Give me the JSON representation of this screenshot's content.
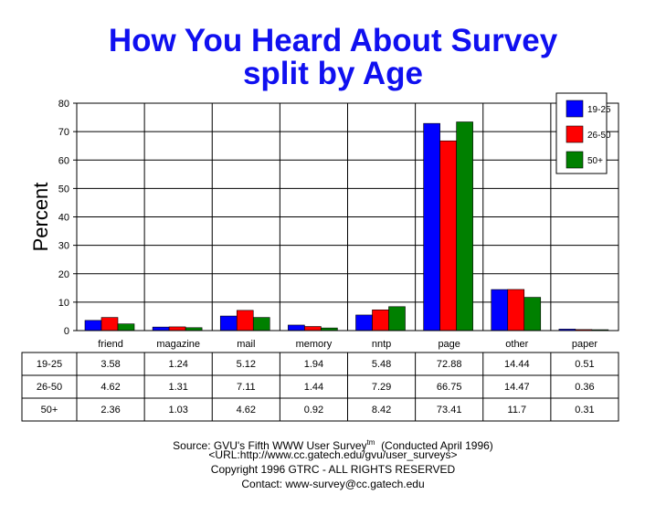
{
  "chart_data": {
    "type": "bar",
    "title": "How You Heard About Survey",
    "subtitle": "split by Age",
    "xlabel": "",
    "ylabel": "Percent",
    "ylim": [
      0,
      80
    ],
    "yticks": [
      0,
      10,
      20,
      30,
      40,
      50,
      60,
      70,
      80
    ],
    "grid": true,
    "legend_position": "top-right",
    "categories": [
      "friend",
      "magazine",
      "mail",
      "memory",
      "nntp",
      "page",
      "other",
      "paper"
    ],
    "series": [
      {
        "name": "19-25",
        "color": "#0000ff",
        "values": [
          3.58,
          1.24,
          5.12,
          1.94,
          5.48,
          72.88,
          14.44,
          0.51
        ]
      },
      {
        "name": "26-50",
        "color": "#ff0000",
        "values": [
          4.62,
          1.31,
          7.11,
          1.44,
          7.29,
          66.75,
          14.47,
          0.36
        ]
      },
      {
        "name": "50+",
        "color": "#008000",
        "values": [
          2.36,
          1.03,
          4.62,
          0.92,
          8.42,
          73.41,
          11.7,
          0.31
        ]
      }
    ]
  },
  "footer": {
    "source": "Source: GVU's Fifth WWW User Survey",
    "tm": "tm",
    "conducted": "(Conducted April 1996)",
    "url": "<URL:http://www.cc.gatech.edu/gvu/user_surveys>",
    "copyright": "Copyright 1996 GTRC -  ALL RIGHTS RESERVED",
    "contact": "Contact: www-survey@cc.gatech.edu"
  }
}
